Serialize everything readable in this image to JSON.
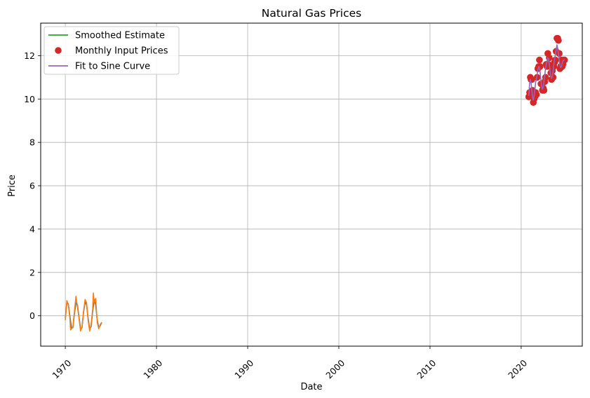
{
  "chart_data": {
    "type": "line",
    "title": "Natural Gas Prices",
    "xlabel": "Date",
    "ylabel": "Price",
    "xlim": [
      1967.3,
      2026.7
    ],
    "ylim": [
      -1.4,
      13.5
    ],
    "x_ticks": [
      1970,
      1980,
      1990,
      2000,
      2010,
      2020
    ],
    "x_tick_labels": [
      "1970",
      "1980",
      "1990",
      "2000",
      "2010",
      "2020"
    ],
    "y_ticks": [
      0,
      2,
      4,
      6,
      8,
      10,
      12
    ],
    "y_tick_labels": [
      "0",
      "2",
      "4",
      "6",
      "8",
      "10",
      "12"
    ],
    "grid": true,
    "legend_position": "top-left",
    "legend": [
      {
        "label": "Smoothed Estimate",
        "color": "#2ca02c",
        "marker": "line"
      },
      {
        "label": "Monthly Input Prices",
        "color": "#d62728",
        "marker": "circle"
      },
      {
        "label": "Fit to Sine Curve",
        "color": "#9467bd",
        "marker": "line"
      }
    ],
    "series": [
      {
        "name": "Monthly Input Prices",
        "color": "#d62728",
        "style": "scatter",
        "x": [
          2020.83,
          2020.92,
          2021.0,
          2021.08,
          2021.17,
          2021.25,
          2021.33,
          2021.42,
          2021.5,
          2021.58,
          2021.67,
          2021.75,
          2021.83,
          2021.92,
          2022.0,
          2022.08,
          2022.17,
          2022.25,
          2022.33,
          2022.42,
          2022.5,
          2022.58,
          2022.67,
          2022.75,
          2022.83,
          2022.92,
          2023.0,
          2023.08,
          2023.17,
          2023.25,
          2023.33,
          2023.42,
          2023.5,
          2023.58,
          2023.67,
          2023.75,
          2023.83,
          2023.92,
          2024.0,
          2024.08,
          2024.17,
          2024.25,
          2024.33,
          2024.42,
          2024.5,
          2024.58,
          2024.67,
          2024.75
        ],
        "y": [
          10.1,
          10.3,
          11.0,
          10.9,
          10.9,
          10.4,
          9.84,
          10.0,
          10.1,
          10.3,
          10.2,
          11.0,
          11.4,
          11.5,
          11.8,
          11.5,
          10.7,
          10.7,
          10.4,
          10.5,
          10.4,
          10.8,
          11.0,
          11.6,
          11.5,
          12.1,
          11.6,
          11.9,
          11.5,
          11.2,
          10.9,
          11.3,
          11.0,
          11.5,
          11.7,
          11.8,
          12.2,
          12.8,
          12.8,
          12.7,
          12.1,
          11.4,
          11.5,
          11.8,
          11.5,
          11.6,
          11.8,
          11.8
        ]
      },
      {
        "name": "Fit to Sine Curve",
        "color": "#9467bd",
        "style": "line",
        "x": [
          2020.83,
          2020.92,
          2021.0,
          2021.08,
          2021.17,
          2021.25,
          2021.33,
          2021.42,
          2021.5,
          2021.58,
          2021.67,
          2021.75,
          2021.83,
          2021.92,
          2022.0,
          2022.08,
          2022.17,
          2022.25,
          2022.33,
          2022.42,
          2022.5,
          2022.58,
          2022.67,
          2022.75,
          2022.83,
          2022.92,
          2023.0,
          2023.08,
          2023.17,
          2023.25,
          2023.33,
          2023.42,
          2023.5,
          2023.58,
          2023.67,
          2023.75,
          2023.83,
          2023.92,
          2024.0,
          2024.08,
          2024.17,
          2024.25,
          2024.33,
          2024.42,
          2024.5,
          2024.58,
          2024.67,
          2024.75
        ],
        "y": [
          10.15,
          10.7,
          10.9,
          10.75,
          10.4,
          10.05,
          9.95,
          10.15,
          10.45,
          10.75,
          10.95,
          11.1,
          11.35,
          11.5,
          11.45,
          11.2,
          10.85,
          10.55,
          10.45,
          10.55,
          10.8,
          11.1,
          11.4,
          11.6,
          11.75,
          11.9,
          11.85,
          11.6,
          11.3,
          11.05,
          10.95,
          11.05,
          11.3,
          11.6,
          11.85,
          12.05,
          12.25,
          12.5,
          12.35,
          12.1,
          11.8,
          11.55,
          11.45,
          11.5,
          11.65,
          11.75,
          11.8,
          11.8
        ]
      },
      {
        "name": "",
        "color": "#1f77b4",
        "style": "line",
        "x": [
          1970.0,
          1970.17,
          1970.33,
          1970.5,
          1970.67,
          1970.83,
          1971.0,
          1971.17,
          1971.33,
          1971.5,
          1971.67,
          1971.83,
          1972.0,
          1972.17,
          1972.33,
          1972.5,
          1972.67,
          1972.83,
          1973.0,
          1973.17,
          1973.33,
          1973.5,
          1973.67,
          1973.83,
          1974.0
        ],
        "y": [
          -0.1,
          0.6,
          0.55,
          0.0,
          -0.55,
          -0.55,
          0.1,
          0.6,
          0.5,
          -0.05,
          -0.6,
          -0.55,
          0.15,
          0.65,
          0.5,
          -0.1,
          -0.6,
          -0.5,
          0.2,
          0.75,
          0.5,
          -0.2,
          -0.55,
          -0.45,
          -0.3
        ]
      },
      {
        "name": "",
        "color": "#ff7f0e",
        "style": "line",
        "x": [
          1970.0,
          1970.17,
          1970.33,
          1970.5,
          1970.58,
          1970.67,
          1970.83,
          1971.0,
          1971.17,
          1971.33,
          1971.5,
          1971.67,
          1971.83,
          1972.0,
          1972.17,
          1972.33,
          1972.5,
          1972.67,
          1972.83,
          1973.0,
          1973.08,
          1973.17,
          1973.33,
          1973.5,
          1973.67,
          1973.83,
          1974.0
        ],
        "y": [
          -0.2,
          0.7,
          0.5,
          -0.1,
          -0.65,
          -0.6,
          -0.5,
          0.2,
          0.9,
          0.4,
          -0.1,
          -0.7,
          -0.5,
          0.2,
          0.75,
          0.6,
          -0.2,
          -0.7,
          -0.4,
          0.3,
          1.05,
          0.6,
          0.8,
          -0.3,
          -0.6,
          -0.4,
          -0.3
        ]
      },
      {
        "name": "Smoothed Estimate",
        "color": "#2ca02c",
        "style": "line",
        "x": [],
        "y": []
      }
    ]
  }
}
